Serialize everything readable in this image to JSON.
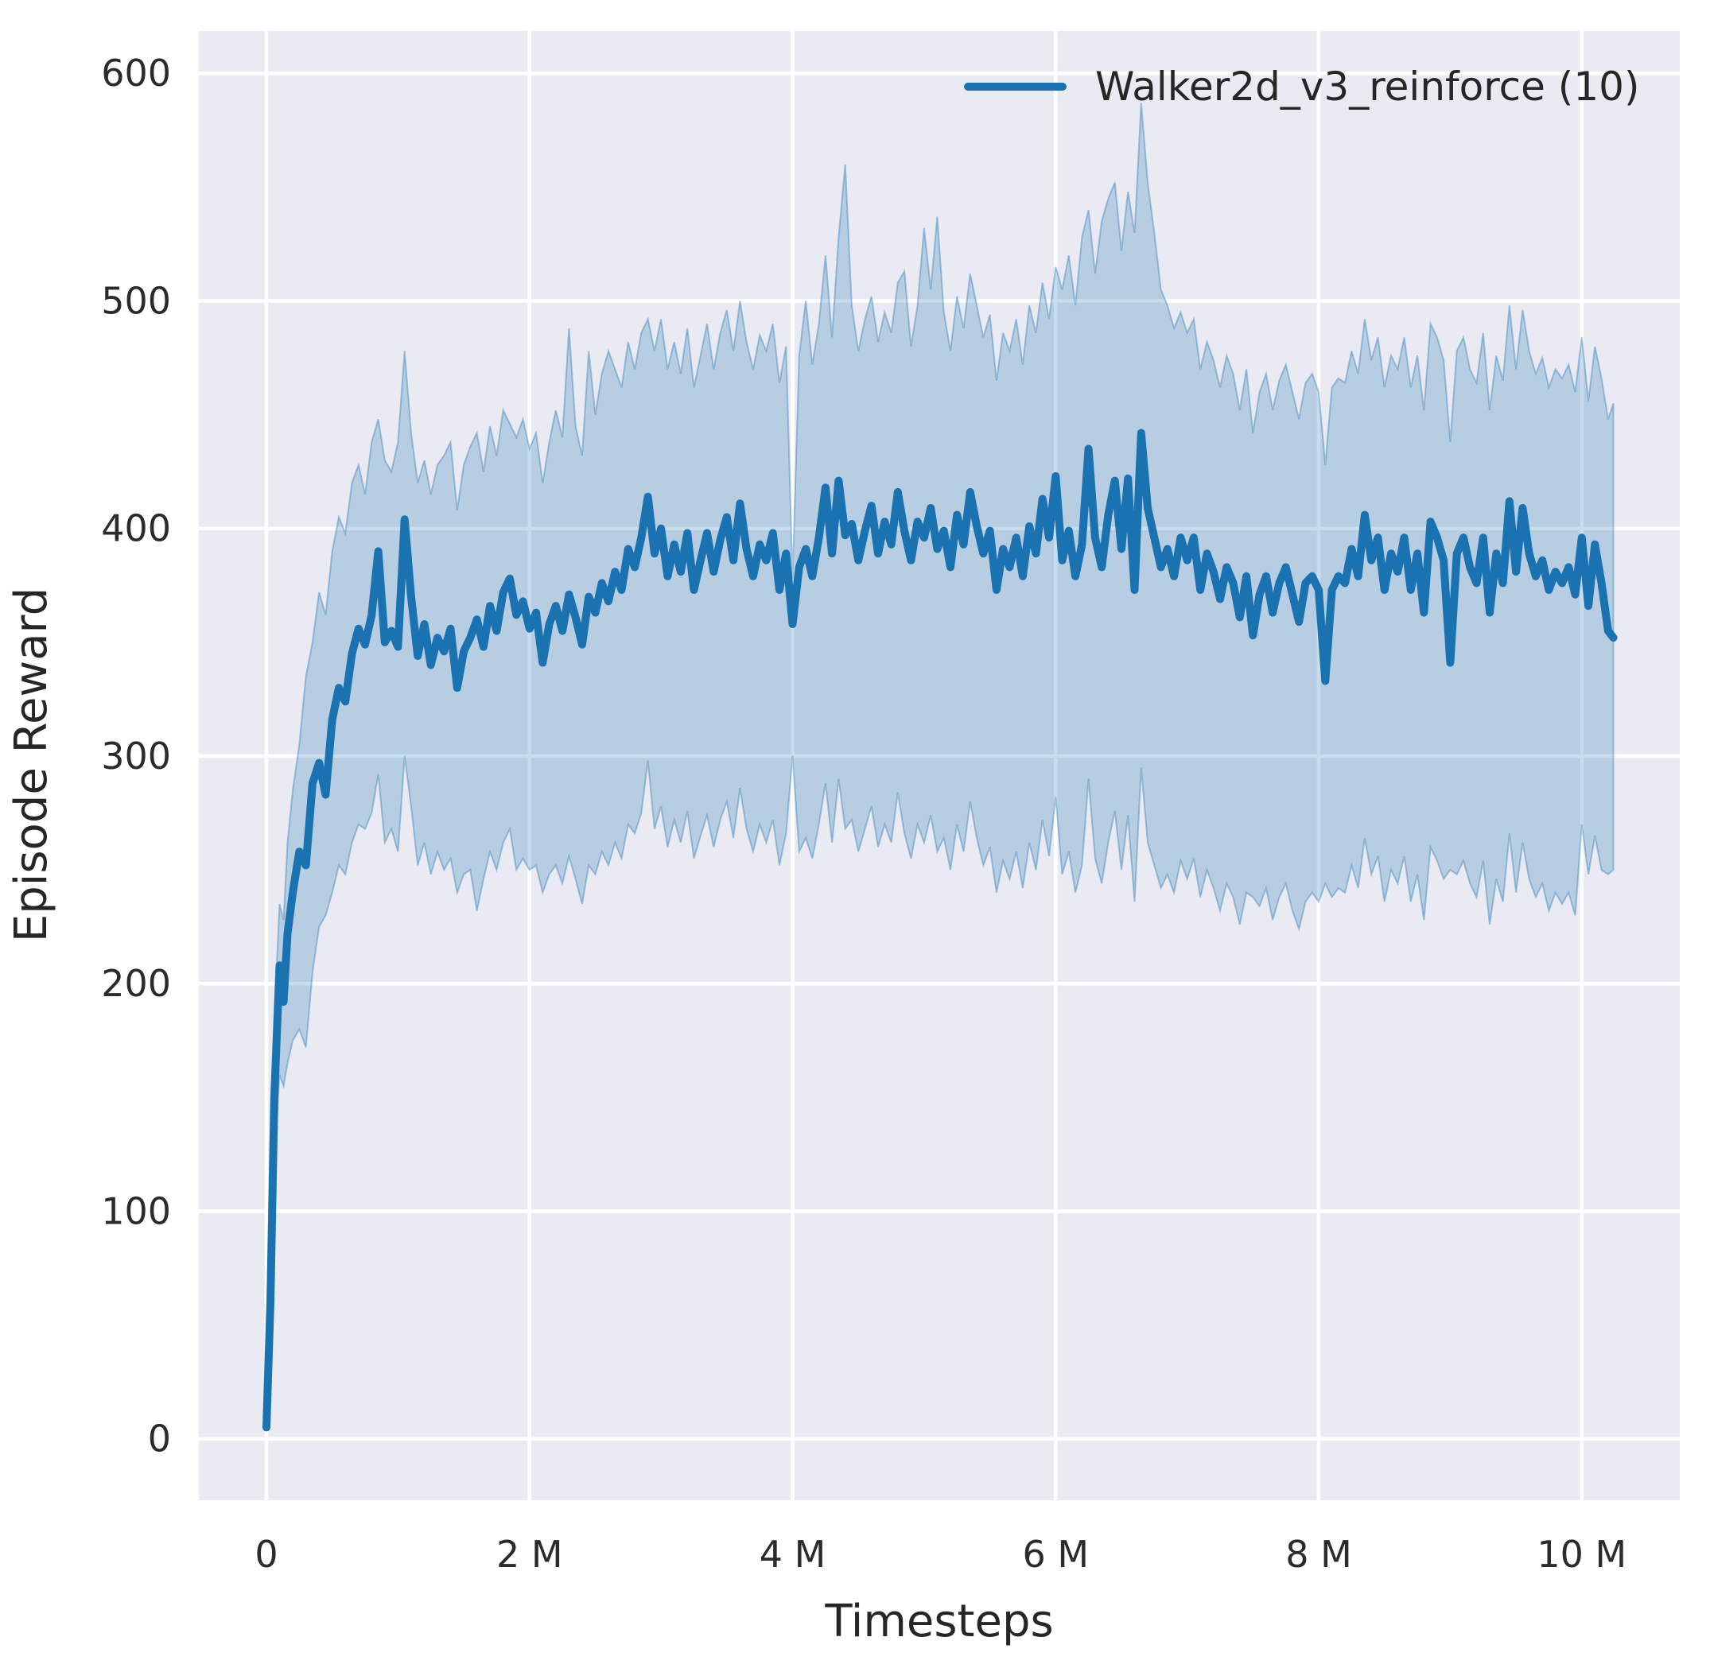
{
  "colors": {
    "figure_bg": "#ffffff",
    "plot_bg": "#eaeaf2",
    "grid": "#ffffff",
    "line": "#1a73b0",
    "band_fill": "#1f77b4",
    "band_opacity": 0.25,
    "band_edge": "rgba(31,119,180,0.38)",
    "text": "#2b2b2b"
  },
  "chart_data": {
    "type": "line",
    "title": "",
    "xlabel": "Timesteps",
    "ylabel": "Episode Reward",
    "xlim": [
      -0.514,
      10.745
    ],
    "ylim": [
      -27,
      618.6
    ],
    "grid": true,
    "xticks": {
      "values": [
        0,
        2,
        4,
        6,
        8,
        10
      ],
      "labels": [
        "0",
        "2 M",
        "4 M",
        "6 M",
        "8 M",
        "10 M"
      ]
    },
    "yticks": {
      "values": [
        0,
        100,
        200,
        300,
        400,
        500,
        600
      ],
      "labels": [
        "0",
        "100",
        "200",
        "300",
        "400",
        "500",
        "600"
      ]
    },
    "x_unit": "millions",
    "legend": {
      "position": "upper right"
    },
    "series": [
      {
        "name": "Walker2d_v3_reinforce (10)",
        "color": "#1a73b0",
        "x": [
          0,
          0.03,
          0.06,
          0.1,
          0.13,
          0.16,
          0.2,
          0.25,
          0.3,
          0.35,
          0.4,
          0.45,
          0.5,
          0.55,
          0.6,
          0.65,
          0.7,
          0.75,
          0.8,
          0.85,
          0.9,
          0.95,
          1.0,
          1.05,
          1.1,
          1.15,
          1.2,
          1.25,
          1.3,
          1.35,
          1.4,
          1.45,
          1.5,
          1.55,
          1.6,
          1.65,
          1.7,
          1.75,
          1.8,
          1.85,
          1.9,
          1.95,
          2.0,
          2.05,
          2.1,
          2.15,
          2.2,
          2.25,
          2.3,
          2.35,
          2.4,
          2.45,
          2.5,
          2.55,
          2.6,
          2.65,
          2.7,
          2.75,
          2.8,
          2.85,
          2.9,
          2.95,
          3.0,
          3.05,
          3.1,
          3.15,
          3.2,
          3.25,
          3.3,
          3.35,
          3.4,
          3.45,
          3.5,
          3.55,
          3.6,
          3.65,
          3.7,
          3.75,
          3.8,
          3.85,
          3.9,
          3.95,
          4.0,
          4.05,
          4.1,
          4.15,
          4.2,
          4.25,
          4.3,
          4.35,
          4.4,
          4.45,
          4.5,
          4.55,
          4.6,
          4.65,
          4.7,
          4.75,
          4.8,
          4.85,
          4.9,
          4.95,
          5.0,
          5.05,
          5.1,
          5.15,
          5.2,
          5.25,
          5.3,
          5.35,
          5.4,
          5.45,
          5.5,
          5.55,
          5.6,
          5.65,
          5.7,
          5.75,
          5.8,
          5.85,
          5.9,
          5.95,
          6.0,
          6.05,
          6.1,
          6.15,
          6.2,
          6.25,
          6.3,
          6.35,
          6.4,
          6.45,
          6.5,
          6.55,
          6.6,
          6.65,
          6.7,
          6.75,
          6.8,
          6.85,
          6.9,
          6.95,
          7.0,
          7.05,
          7.1,
          7.15,
          7.2,
          7.25,
          7.3,
          7.35,
          7.4,
          7.45,
          7.5,
          7.55,
          7.6,
          7.65,
          7.7,
          7.75,
          7.8,
          7.85,
          7.9,
          7.95,
          8.0,
          8.05,
          8.1,
          8.15,
          8.2,
          8.25,
          8.3,
          8.35,
          8.4,
          8.45,
          8.5,
          8.55,
          8.6,
          8.65,
          8.7,
          8.75,
          8.8,
          8.85,
          8.9,
          8.95,
          9.0,
          9.05,
          9.1,
          9.15,
          9.2,
          9.25,
          9.3,
          9.35,
          9.4,
          9.45,
          9.5,
          9.55,
          9.6,
          9.65,
          9.7,
          9.75,
          9.8,
          9.85,
          9.9,
          9.95,
          10.0,
          10.05,
          10.1,
          10.15,
          10.2,
          10.24
        ],
        "mean": [
          5,
          60,
          150,
          208,
          192,
          222,
          240,
          258,
          252,
          288,
          297,
          283,
          316,
          330,
          324,
          345,
          356,
          349,
          362,
          390,
          350,
          355,
          348,
          404,
          370,
          344,
          358,
          340,
          352,
          346,
          356,
          330,
          346,
          352,
          360,
          348,
          366,
          355,
          372,
          378,
          362,
          368,
          356,
          363,
          341,
          358,
          366,
          355,
          371,
          361,
          349,
          370,
          363,
          376,
          368,
          381,
          373,
          391,
          383,
          396,
          414,
          389,
          400,
          379,
          393,
          381,
          398,
          373,
          386,
          398,
          381,
          395,
          405,
          386,
          411,
          391,
          379,
          393,
          386,
          398,
          373,
          389,
          358,
          383,
          391,
          379,
          396,
          418,
          389,
          421,
          397,
          402,
          386,
          399,
          410,
          389,
          403,
          393,
          416,
          399,
          386,
          403,
          396,
          409,
          391,
          399,
          383,
          406,
          393,
          416,
          401,
          389,
          399,
          373,
          391,
          383,
          396,
          379,
          401,
          389,
          413,
          396,
          423,
          386,
          399,
          379,
          393,
          435,
          396,
          383,
          406,
          421,
          391,
          422,
          373,
          442,
          409,
          396,
          383,
          391,
          379,
          396,
          386,
          396,
          373,
          389,
          381,
          369,
          383,
          376,
          361,
          379,
          353,
          371,
          379,
          363,
          376,
          383,
          371,
          359,
          376,
          379,
          373,
          333,
          373,
          379,
          376,
          391,
          379,
          406,
          386,
          396,
          373,
          389,
          381,
          396,
          373,
          389,
          363,
          403,
          396,
          386,
          341,
          389,
          396,
          383,
          376,
          396,
          363,
          389,
          376,
          412,
          381,
          409,
          389,
          379,
          386,
          373,
          381,
          376,
          383,
          371,
          396,
          366,
          393,
          376,
          355,
          352
        ],
        "lo": [
          5,
          45,
          120,
          160,
          155,
          165,
          175,
          180,
          172,
          205,
          225,
          230,
          240,
          252,
          248,
          262,
          270,
          268,
          275,
          292,
          262,
          268,
          258,
          300,
          278,
          252,
          262,
          248,
          258,
          250,
          255,
          240,
          248,
          250,
          232,
          246,
          258,
          250,
          262,
          268,
          250,
          255,
          250,
          252,
          240,
          248,
          252,
          244,
          256,
          246,
          235,
          252,
          248,
          258,
          252,
          262,
          255,
          270,
          266,
          275,
          298,
          268,
          278,
          260,
          272,
          262,
          276,
          255,
          265,
          274,
          260,
          272,
          280,
          264,
          286,
          268,
          258,
          270,
          262,
          272,
          252,
          266,
          300,
          258,
          264,
          255,
          270,
          288,
          262,
          290,
          268,
          272,
          258,
          268,
          278,
          260,
          270,
          262,
          284,
          266,
          255,
          270,
          262,
          274,
          258,
          264,
          250,
          270,
          258,
          280,
          264,
          252,
          260,
          240,
          254,
          246,
          258,
          242,
          262,
          250,
          272,
          256,
          282,
          248,
          258,
          240,
          252,
          290,
          255,
          244,
          262,
          276,
          250,
          274,
          236,
          295,
          262,
          252,
          242,
          248,
          240,
          254,
          246,
          255,
          238,
          250,
          242,
          232,
          244,
          238,
          226,
          240,
          238,
          234,
          242,
          228,
          238,
          244,
          232,
          224,
          236,
          240,
          236,
          244,
          238,
          242,
          240,
          252,
          242,
          264,
          248,
          256,
          236,
          250,
          244,
          256,
          236,
          248,
          228,
          260,
          254,
          246,
          250,
          248,
          254,
          244,
          238,
          254,
          226,
          246,
          236,
          266,
          240,
          262,
          246,
          238,
          244,
          232,
          240,
          235,
          240,
          230,
          270,
          248,
          265,
          250,
          248,
          250
        ],
        "hi": [
          5,
          80,
          185,
          235,
          228,
          262,
          285,
          305,
          335,
          350,
          372,
          362,
          390,
          405,
          398,
          420,
          428,
          415,
          438,
          448,
          430,
          425,
          438,
          478,
          442,
          420,
          430,
          415,
          428,
          432,
          438,
          408,
          428,
          436,
          442,
          425,
          445,
          432,
          452,
          446,
          440,
          448,
          435,
          442,
          420,
          438,
          452,
          440,
          488,
          445,
          432,
          478,
          450,
          468,
          478,
          470,
          462,
          482,
          470,
          486,
          492,
          478,
          492,
          470,
          482,
          468,
          488,
          462,
          476,
          490,
          470,
          486,
          496,
          478,
          500,
          482,
          470,
          485,
          478,
          490,
          464,
          480,
          378,
          476,
          500,
          472,
          490,
          520,
          484,
          528,
          560,
          498,
          478,
          492,
          502,
          482,
          495,
          486,
          508,
          513,
          480,
          498,
          532,
          505,
          537,
          495,
          478,
          502,
          488,
          512,
          498,
          484,
          494,
          465,
          486,
          478,
          492,
          472,
          498,
          486,
          508,
          492,
          515,
          505,
          520,
          498,
          528,
          540,
          512,
          535,
          545,
          552,
          522,
          548,
          530,
          587,
          552,
          530,
          505,
          498,
          488,
          495,
          486,
          492,
          470,
          482,
          474,
          462,
          476,
          468,
          452,
          470,
          442,
          460,
          468,
          452,
          465,
          472,
          460,
          448,
          464,
          468,
          460,
          428,
          462,
          466,
          464,
          478,
          468,
          492,
          474,
          484,
          462,
          476,
          470,
          484,
          462,
          476,
          452,
          490,
          484,
          474,
          438,
          478,
          484,
          470,
          464,
          486,
          452,
          476,
          465,
          498,
          470,
          496,
          478,
          468,
          475,
          462,
          470,
          466,
          472,
          460,
          484,
          456,
          480,
          466,
          448,
          455
        ]
      }
    ]
  }
}
